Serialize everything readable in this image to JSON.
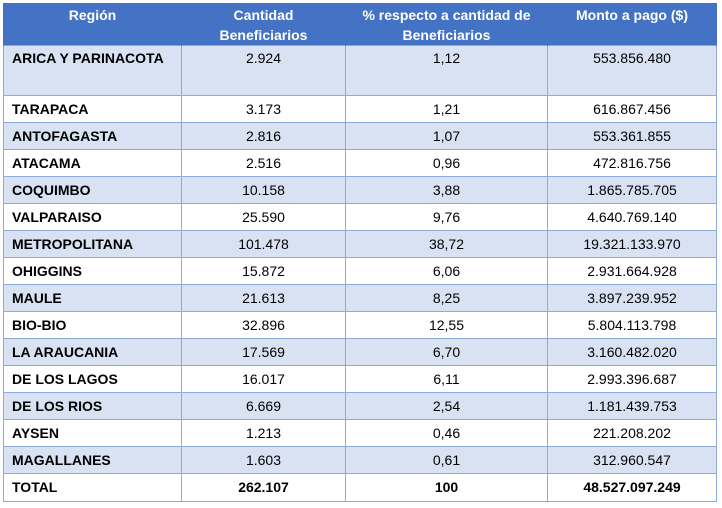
{
  "table": {
    "headers": [
      "Región",
      "Cantidad Beneficiarios",
      "% respecto a cantidad de Beneficiarios",
      "Monto a pago ($)"
    ],
    "rows": [
      [
        "ARICA Y PARINACOTA",
        "2.924",
        "1,12",
        "553.856.480"
      ],
      [
        "TARAPACA",
        "3.173",
        "1,21",
        "616.867.456"
      ],
      [
        "ANTOFAGASTA",
        "2.816",
        "1,07",
        "553.361.855"
      ],
      [
        "ATACAMA",
        "2.516",
        "0,96",
        "472.816.756"
      ],
      [
        "COQUIMBO",
        "10.158",
        "3,88",
        "1.865.785.705"
      ],
      [
        "VALPARAISO",
        "25.590",
        "9,76",
        "4.640.769.140"
      ],
      [
        "METROPOLITANA",
        "101.478",
        "38,72",
        "19.321.133.970"
      ],
      [
        "OHIGGINS",
        "15.872",
        "6,06",
        "2.931.664.928"
      ],
      [
        "MAULE",
        "21.613",
        "8,25",
        "3.897.239.952"
      ],
      [
        "BIO-BIO",
        "32.896",
        "12,55",
        "5.804.113.798"
      ],
      [
        "LA ARAUCANIA",
        "17.569",
        "6,70",
        "3.160.482.020"
      ],
      [
        "DE LOS LAGOS",
        "16.017",
        "6,11",
        "2.993.396.687"
      ],
      [
        "DE LOS RIOS",
        "6.669",
        "2,54",
        "1.181.439.753"
      ],
      [
        "AYSEN",
        "1.213",
        "0,46",
        "221.208.202"
      ],
      [
        "MAGALLANES",
        "1.603",
        "0,61",
        "312.960.547"
      ]
    ],
    "total": [
      "TOTAL",
      "262.107",
      "100",
      "48.527.097.249"
    ]
  }
}
